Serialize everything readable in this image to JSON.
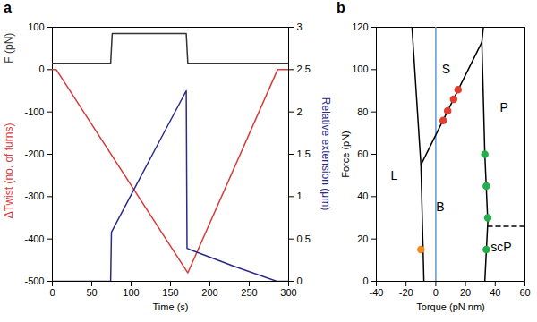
{
  "chart_data": [
    {
      "type": "line",
      "title": "a",
      "xlabel": "Time (s)",
      "xlim": [
        0,
        300
      ],
      "xticks": [
        0,
        50,
        100,
        150,
        200,
        250,
        300
      ],
      "ylim": [
        -500,
        100
      ],
      "yticks": [
        -500,
        -400,
        -300,
        -200,
        -100,
        0,
        100
      ],
      "y2lim": [
        0,
        3
      ],
      "y2ticks": [
        0,
        0.5,
        1,
        1.5,
        2,
        2.5,
        3
      ],
      "series": [
        {
          "name": "F (pN)",
          "color": "#333333",
          "type": "line",
          "x": [
            0,
            74,
            76,
            170,
            172,
            300
          ],
          "values": [
            15,
            15,
            85,
            85,
            15,
            15
          ]
        },
        {
          "name": "ΔTwist (no. of turns)",
          "color": "#d93a3a",
          "type": "line",
          "x": [
            0,
            5,
            172,
            286,
            300
          ],
          "values": [
            0,
            0,
            -480,
            0,
            0
          ]
        },
        {
          "name": "Relative extension (μm)",
          "color": "#2b2b8a",
          "type": "line",
          "axis": "y2",
          "x": [
            0,
            74,
            75,
            100,
            130,
            170,
            171,
            176,
            230,
            285,
            300
          ],
          "values": [
            0,
            0,
            0.58,
            1.02,
            1.55,
            2.25,
            0.39,
            0.37,
            0.18,
            0,
            0
          ]
        }
      ]
    },
    {
      "type": "line",
      "title": "b",
      "xlabel": "Torque (pN nm)",
      "ylabel": "Force (pN)",
      "xlim": [
        -40,
        60
      ],
      "xticks": [
        -40,
        -20,
        0,
        20,
        40,
        60
      ],
      "ylim": [
        0,
        120
      ],
      "yticks": [
        0,
        20,
        40,
        60,
        80,
        100,
        120
      ],
      "series": [
        {
          "color": "#5b9bd5",
          "type": "line",
          "x": [
            0,
            0
          ],
          "values": [
            0,
            120
          ]
        },
        {
          "color": "#000000",
          "type": "line",
          "x": [
            -8,
            -10,
            -16
          ],
          "values": [
            0,
            55,
            120
          ]
        },
        {
          "color": "#000000",
          "type": "line",
          "x": [
            -10,
            31
          ],
          "values": [
            55,
            113
          ]
        },
        {
          "color": "#000000",
          "type": "line",
          "x": [
            32,
            31,
            33,
            35,
            33
          ],
          "values": [
            120,
            113,
            60,
            28,
            0
          ]
        },
        {
          "color": "#000000",
          "type": "line",
          "line_style": "dashed",
          "x": [
            35,
            60
          ],
          "values": [
            26,
            26
          ]
        },
        {
          "color": "#e0402f",
          "type": "scatter",
          "marker": "circle",
          "x": [
            5,
            8,
            12,
            15
          ],
          "values": [
            76,
            80.5,
            86,
            90.5
          ]
        },
        {
          "color": "#22b04b",
          "type": "scatter",
          "marker": "circle",
          "x": [
            33,
            34,
            35,
            34
          ],
          "values": [
            60,
            45,
            30,
            15
          ]
        },
        {
          "color": "#f08c1e",
          "type": "scatter",
          "marker": "circle",
          "x": [
            -10
          ],
          "values": [
            15
          ]
        }
      ],
      "annotations": [
        {
          "text": "L",
          "x": -28,
          "y": 50
        },
        {
          "text": "B",
          "x": 3,
          "y": 35
        },
        {
          "text": "S",
          "x": 7,
          "y": 100
        },
        {
          "text": "P",
          "x": 46,
          "y": 82
        },
        {
          "text": "scP",
          "x": 44,
          "y": 16
        }
      ]
    }
  ]
}
